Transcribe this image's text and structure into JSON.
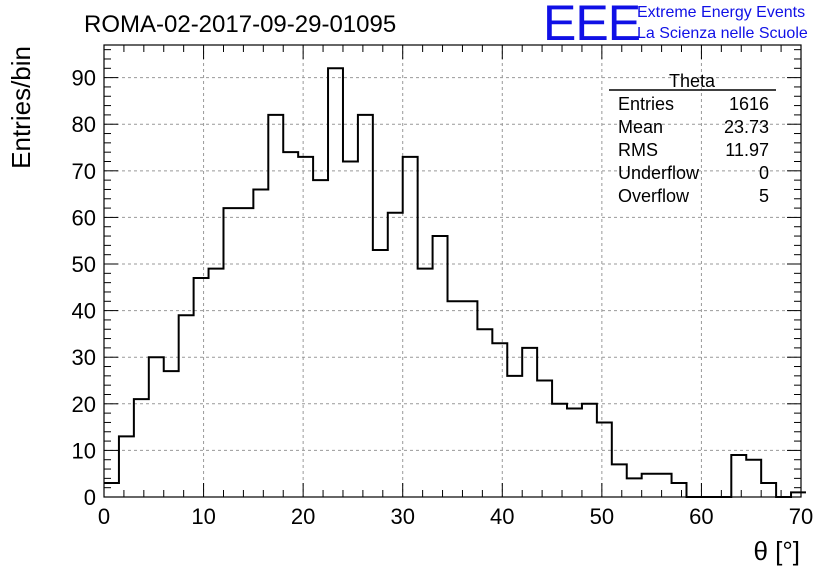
{
  "chart_data": {
    "type": "bar",
    "title": "ROMA-02-2017-09-29-01095",
    "xlabel": "θ [°]",
    "ylabel": "Entries/bin",
    "xlim": [
      0,
      70
    ],
    "ylim": [
      0,
      97
    ],
    "x_ticks": [
      "0",
      "10",
      "20",
      "30",
      "40",
      "50",
      "60",
      "70"
    ],
    "y_ticks": [
      "0",
      "10",
      "20",
      "30",
      "40",
      "50",
      "60",
      "70",
      "80",
      "90"
    ],
    "grid": true,
    "bin_width": 1.5,
    "bin_edges_start": 0,
    "values": [
      3,
      13,
      21,
      30,
      27,
      39,
      47,
      49,
      62,
      62,
      66,
      82,
      74,
      73,
      68,
      92,
      72,
      82,
      53,
      61,
      73,
      49,
      56,
      42,
      42,
      36,
      33,
      26,
      32,
      25,
      20,
      19,
      20,
      16,
      7,
      4,
      5,
      5,
      3,
      0,
      0,
      0,
      9,
      8,
      3,
      0,
      1
    ]
  },
  "stats_box": {
    "title": "Theta",
    "rows": [
      {
        "label": "Entries",
        "value": "1616"
      },
      {
        "label": "Mean",
        "value": "23.73"
      },
      {
        "label": "RMS",
        "value": "11.97"
      },
      {
        "label": "Underflow",
        "value": "0"
      },
      {
        "label": "Overflow",
        "value": "5"
      }
    ]
  },
  "logo": {
    "mark": "EEE",
    "line1": "Extreme Energy Events",
    "line2": "La Scienza nelle Scuole",
    "color": "#1010e6"
  }
}
